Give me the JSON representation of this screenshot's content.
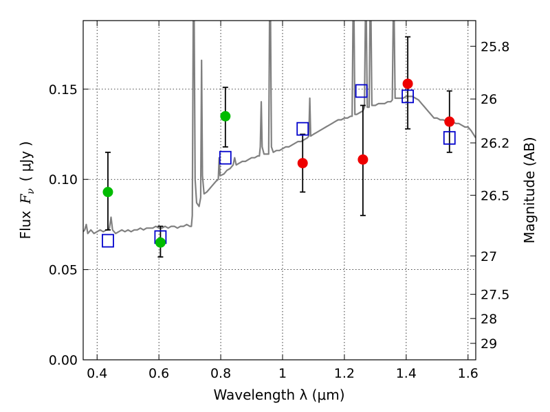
{
  "chart_data": {
    "type": "scatter",
    "title": "",
    "xlabel": "Wavelength  λ (μm)",
    "ylabel_prefix": "Flux",
    "ylabel_symbol": "F",
    "ylabel_subscript": "ν",
    "ylabel_unit": "( μJy )",
    "y2label": "Magnitude (AB)",
    "xlim": [
      0.355,
      1.625
    ],
    "ylim": [
      0.0,
      0.188
    ],
    "grid": true,
    "x_ticks": [
      {
        "value": 0.4,
        "label": "0.4"
      },
      {
        "value": 0.6,
        "label": "0.6"
      },
      {
        "value": 0.8,
        "label": "0.8"
      },
      {
        "value": 1.0,
        "label": "1"
      },
      {
        "value": 1.2,
        "label": "1.2"
      },
      {
        "value": 1.4,
        "label": "1.4"
      },
      {
        "value": 1.6,
        "label": "1.6"
      }
    ],
    "y_ticks": [
      {
        "value": 0.0,
        "label": "0.00"
      },
      {
        "value": 0.05,
        "label": "0.05"
      },
      {
        "value": 0.1,
        "label": "0.10"
      },
      {
        "value": 0.15,
        "label": "0.15"
      }
    ],
    "y2_ticks": [
      {
        "value": 25.8,
        "label": "25.8"
      },
      {
        "value": 26.0,
        "label": "26"
      },
      {
        "value": 26.2,
        "label": "26.2"
      },
      {
        "value": 26.5,
        "label": "26.5"
      },
      {
        "value": 27.0,
        "label": "27"
      },
      {
        "value": 27.5,
        "label": "27.5"
      },
      {
        "value": 28.0,
        "label": "28"
      },
      {
        "value": 29.0,
        "label": "29"
      }
    ],
    "series": [
      {
        "kind": "model-spectrum",
        "color": "#808080",
        "points": [
          [
            0.355,
            0.071
          ],
          [
            0.36,
            0.072
          ],
          [
            0.365,
            0.075
          ],
          [
            0.37,
            0.07
          ],
          [
            0.38,
            0.072
          ],
          [
            0.39,
            0.07
          ],
          [
            0.4,
            0.071
          ],
          [
            0.41,
            0.072
          ],
          [
            0.42,
            0.071
          ],
          [
            0.43,
            0.072
          ],
          [
            0.435,
            0.072
          ],
          [
            0.44,
            0.073
          ],
          [
            0.445,
            0.079
          ],
          [
            0.45,
            0.072
          ],
          [
            0.46,
            0.07
          ],
          [
            0.47,
            0.071
          ],
          [
            0.48,
            0.072
          ],
          [
            0.49,
            0.071
          ],
          [
            0.5,
            0.072
          ],
          [
            0.51,
            0.071
          ],
          [
            0.52,
            0.072
          ],
          [
            0.53,
            0.072
          ],
          [
            0.54,
            0.073
          ],
          [
            0.55,
            0.072
          ],
          [
            0.56,
            0.073
          ],
          [
            0.57,
            0.073
          ],
          [
            0.58,
            0.073
          ],
          [
            0.59,
            0.074
          ],
          [
            0.6,
            0.073
          ],
          [
            0.61,
            0.073
          ],
          [
            0.62,
            0.074
          ],
          [
            0.63,
            0.073
          ],
          [
            0.64,
            0.074
          ],
          [
            0.65,
            0.074
          ],
          [
            0.66,
            0.073
          ],
          [
            0.67,
            0.074
          ],
          [
            0.68,
            0.074
          ],
          [
            0.69,
            0.075
          ],
          [
            0.7,
            0.074
          ],
          [
            0.705,
            0.074
          ],
          [
            0.708,
            0.08
          ],
          [
            0.711,
            0.19
          ],
          [
            0.714,
            0.19
          ],
          [
            0.717,
            0.1
          ],
          [
            0.722,
            0.087
          ],
          [
            0.73,
            0.085
          ],
          [
            0.735,
            0.09
          ],
          [
            0.738,
            0.166
          ],
          [
            0.741,
            0.102
          ],
          [
            0.746,
            0.092
          ],
          [
            0.755,
            0.093
          ],
          [
            0.765,
            0.095
          ],
          [
            0.775,
            0.097
          ],
          [
            0.785,
            0.099
          ],
          [
            0.792,
            0.1
          ],
          [
            0.795,
            0.112
          ],
          [
            0.798,
            0.102
          ],
          [
            0.81,
            0.103
          ],
          [
            0.82,
            0.105
          ],
          [
            0.83,
            0.106
          ],
          [
            0.84,
            0.108
          ],
          [
            0.845,
            0.112
          ],
          [
            0.85,
            0.108
          ],
          [
            0.86,
            0.109
          ],
          [
            0.87,
            0.11
          ],
          [
            0.88,
            0.11
          ],
          [
            0.89,
            0.111
          ],
          [
            0.9,
            0.112
          ],
          [
            0.91,
            0.112
          ],
          [
            0.92,
            0.113
          ],
          [
            0.925,
            0.113
          ],
          [
            0.928,
            0.118
          ],
          [
            0.931,
            0.143
          ],
          [
            0.934,
            0.118
          ],
          [
            0.94,
            0.114
          ],
          [
            0.95,
            0.114
          ],
          [
            0.955,
            0.114
          ],
          [
            0.958,
            0.19
          ],
          [
            0.961,
            0.19
          ],
          [
            0.964,
            0.118
          ],
          [
            0.97,
            0.115
          ],
          [
            0.98,
            0.116
          ],
          [
            0.99,
            0.116
          ],
          [
            1.0,
            0.117
          ],
          [
            1.01,
            0.118
          ],
          [
            1.02,
            0.118
          ],
          [
            1.03,
            0.119
          ],
          [
            1.04,
            0.12
          ],
          [
            1.05,
            0.121
          ],
          [
            1.06,
            0.121
          ],
          [
            1.07,
            0.122
          ],
          [
            1.08,
            0.123
          ],
          [
            1.085,
            0.124
          ],
          [
            1.088,
            0.145
          ],
          [
            1.091,
            0.124
          ],
          [
            1.1,
            0.125
          ],
          [
            1.11,
            0.126
          ],
          [
            1.12,
            0.127
          ],
          [
            1.13,
            0.128
          ],
          [
            1.14,
            0.129
          ],
          [
            1.15,
            0.13
          ],
          [
            1.16,
            0.131
          ],
          [
            1.17,
            0.132
          ],
          [
            1.18,
            0.133
          ],
          [
            1.19,
            0.133
          ],
          [
            1.2,
            0.134
          ],
          [
            1.21,
            0.134
          ],
          [
            1.22,
            0.135
          ],
          [
            1.225,
            0.135
          ],
          [
            1.228,
            0.19
          ],
          [
            1.231,
            0.19
          ],
          [
            1.234,
            0.136
          ],
          [
            1.24,
            0.136
          ],
          [
            1.25,
            0.137
          ],
          [
            1.26,
            0.138
          ],
          [
            1.265,
            0.14
          ],
          [
            1.268,
            0.19
          ],
          [
            1.271,
            0.19
          ],
          [
            1.274,
            0.14
          ],
          [
            1.28,
            0.14
          ],
          [
            1.283,
            0.19
          ],
          [
            1.286,
            0.19
          ],
          [
            1.289,
            0.141
          ],
          [
            1.3,
            0.141
          ],
          [
            1.31,
            0.142
          ],
          [
            1.32,
            0.142
          ],
          [
            1.33,
            0.142
          ],
          [
            1.34,
            0.143
          ],
          [
            1.35,
            0.143
          ],
          [
            1.355,
            0.144
          ],
          [
            1.358,
            0.19
          ],
          [
            1.361,
            0.19
          ],
          [
            1.364,
            0.145
          ],
          [
            1.37,
            0.145
          ],
          [
            1.38,
            0.145
          ],
          [
            1.39,
            0.145
          ],
          [
            1.4,
            0.146
          ],
          [
            1.41,
            0.146
          ],
          [
            1.42,
            0.146
          ],
          [
            1.43,
            0.145
          ],
          [
            1.44,
            0.144
          ],
          [
            1.45,
            0.142
          ],
          [
            1.46,
            0.14
          ],
          [
            1.47,
            0.138
          ],
          [
            1.48,
            0.136
          ],
          [
            1.49,
            0.134
          ],
          [
            1.5,
            0.134
          ],
          [
            1.51,
            0.133
          ],
          [
            1.52,
            0.133
          ],
          [
            1.53,
            0.132
          ],
          [
            1.54,
            0.132
          ],
          [
            1.55,
            0.132
          ],
          [
            1.56,
            0.131
          ],
          [
            1.57,
            0.131
          ],
          [
            1.58,
            0.13
          ],
          [
            1.59,
            0.129
          ],
          [
            1.6,
            0.129
          ],
          [
            1.61,
            0.127
          ],
          [
            1.625,
            0.123
          ]
        ]
      },
      {
        "kind": "model-photometry",
        "marker": "open-square",
        "color": "#0000cc",
        "points": [
          [
            0.435,
            0.066
          ],
          [
            0.605,
            0.068
          ],
          [
            0.815,
            0.112
          ],
          [
            1.065,
            0.128
          ],
          [
            1.255,
            0.149
          ],
          [
            1.405,
            0.146
          ],
          [
            1.54,
            0.123
          ]
        ]
      },
      {
        "kind": "observed-optical",
        "marker": "filled-circle",
        "color": "#00bb00",
        "points": [
          {
            "x": 0.435,
            "y": 0.093,
            "lo": 0.072,
            "hi": 0.115
          },
          {
            "x": 0.605,
            "y": 0.065,
            "lo": 0.057,
            "hi": 0.074
          },
          {
            "x": 0.815,
            "y": 0.135,
            "lo": 0.118,
            "hi": 0.151
          }
        ]
      },
      {
        "kind": "observed-nir",
        "marker": "filled-circle",
        "color": "#ee0000",
        "points": [
          {
            "x": 1.065,
            "y": 0.109,
            "lo": 0.093,
            "hi": 0.125
          },
          {
            "x": 1.26,
            "y": 0.111,
            "lo": 0.08,
            "hi": 0.141
          },
          {
            "x": 1.405,
            "y": 0.153,
            "lo": 0.128,
            "hi": 0.179
          },
          {
            "x": 1.54,
            "y": 0.132,
            "lo": 0.115,
            "hi": 0.149
          }
        ]
      }
    ]
  }
}
